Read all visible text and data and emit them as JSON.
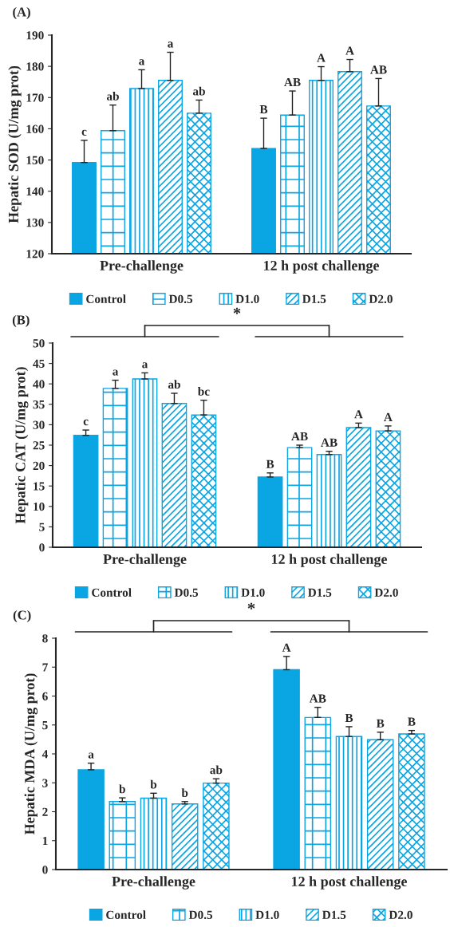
{
  "chart_data": [
    {
      "type": "bar",
      "title": "(A)",
      "ylabel": "Hepatic SOD (U/mg prot)",
      "categories": [
        "Pre-challenge",
        "12 h post challenge"
      ],
      "ylim": [
        120,
        190
      ],
      "yticks": [
        120,
        130,
        140,
        150,
        160,
        170,
        180,
        190
      ],
      "legend": "bottom",
      "series": [
        {
          "name": "Control",
          "color": "#0aa5e3",
          "values": [
            149.2,
            153.7
          ],
          "errors": [
            [
              149.2,
              156.3
            ],
            [
              153.7,
              163.4
            ]
          ],
          "value_labels": [
            "c",
            "B"
          ]
        },
        {
          "name": "D0.5",
          "color": "#0aa5e3",
          "values": [
            159.4,
            164.4
          ],
          "errors": [
            [
              159.4,
              167.6
            ],
            [
              164.4,
              172.1
            ]
          ],
          "value_labels": [
            "ab",
            "AB"
          ]
        },
        {
          "name": "D1.0",
          "color": "#0aa5e3",
          "values": [
            172.9,
            175.5
          ],
          "errors": [
            [
              172.9,
              178.9
            ],
            [
              175.5,
              179.9
            ]
          ],
          "value_labels": [
            "a",
            "A"
          ]
        },
        {
          "name": "D1.5",
          "color": "#0aa5e3",
          "values": [
            175.5,
            178.3
          ],
          "errors": [
            [
              175.5,
              184.5
            ],
            [
              178.3,
              182.2
            ]
          ],
          "value_labels": [
            "a",
            "A"
          ]
        },
        {
          "name": "D2.0",
          "color": "#0aa5e3",
          "values": [
            165.0,
            167.3
          ],
          "errors": [
            [
              165.0,
              169.2
            ],
            [
              167.3,
              176.1
            ]
          ],
          "value_labels": [
            "ab",
            "AB"
          ]
        }
      ]
    },
    {
      "type": "bar",
      "title": "(B)",
      "ylabel": "Hepatic CAT (U/mg prot)",
      "categories": [
        "Pre-challenge",
        "12 h post challenge"
      ],
      "ylim": [
        0,
        50
      ],
      "yticks": [
        0,
        5,
        10,
        15,
        20,
        25,
        30,
        35,
        40,
        45,
        50
      ],
      "legend": "bottom",
      "annotations": [
        "*"
      ],
      "series": [
        {
          "name": "Control",
          "color": "#0aa5e3",
          "values": [
            27.4,
            17.2
          ],
          "errors": [
            [
              27.4,
              28.7
            ],
            [
              17.2,
              18.2
            ]
          ],
          "value_labels": [
            "c",
            "B"
          ]
        },
        {
          "name": "D0.5",
          "color": "#0aa5e3",
          "values": [
            38.9,
            24.4
          ],
          "errors": [
            [
              38.9,
              40.9
            ],
            [
              24.4,
              25.0
            ]
          ],
          "value_labels": [
            "a",
            "AB"
          ]
        },
        {
          "name": "D1.0",
          "color": "#0aa5e3",
          "values": [
            41.2,
            22.7
          ],
          "errors": [
            [
              41.2,
              42.7
            ],
            [
              22.7,
              23.5
            ]
          ],
          "value_labels": [
            "a",
            "AB"
          ]
        },
        {
          "name": "D1.5",
          "color": "#0aa5e3",
          "values": [
            35.2,
            29.3
          ],
          "errors": [
            [
              35.2,
              37.7
            ],
            [
              29.3,
              30.4
            ]
          ],
          "value_labels": [
            "ab",
            "A"
          ]
        },
        {
          "name": "D2.0",
          "color": "#0aa5e3",
          "values": [
            32.4,
            28.5
          ],
          "errors": [
            [
              32.4,
              36.0
            ],
            [
              28.5,
              29.7
            ]
          ],
          "value_labels": [
            "bc",
            "A"
          ]
        }
      ]
    },
    {
      "type": "bar",
      "title": "(C)",
      "ylabel": "Hepatic MDA (U/mg prot)",
      "categories": [
        "Pre-challenge",
        "12 h post challenge"
      ],
      "ylim": [
        0,
        8
      ],
      "yticks": [
        0,
        1,
        2,
        3,
        4,
        5,
        6,
        7,
        8
      ],
      "legend": "bottom",
      "annotations": [
        "*"
      ],
      "series": [
        {
          "name": "Control",
          "color": "#0aa5e3",
          "values": [
            3.45,
            6.91
          ],
          "errors": [
            [
              3.45,
              3.68
            ],
            [
              6.91,
              7.37
            ]
          ],
          "value_labels": [
            "a",
            "A"
          ]
        },
        {
          "name": "D0.5",
          "color": "#0aa5e3",
          "values": [
            2.35,
            5.26
          ],
          "errors": [
            [
              2.35,
              2.48
            ],
            [
              5.26,
              5.61
            ]
          ],
          "value_labels": [
            "b",
            "AB"
          ]
        },
        {
          "name": "D1.0",
          "color": "#0aa5e3",
          "values": [
            2.47,
            4.6
          ],
          "errors": [
            [
              2.47,
              2.64
            ],
            [
              4.6,
              4.94
            ]
          ],
          "value_labels": [
            "b",
            "B"
          ]
        },
        {
          "name": "D1.5",
          "color": "#0aa5e3",
          "values": [
            2.27,
            4.49
          ],
          "errors": [
            [
              2.27,
              2.35
            ],
            [
              4.49,
              4.75
            ]
          ],
          "value_labels": [
            "b",
            "B"
          ]
        },
        {
          "name": "D2.0",
          "color": "#0aa5e3",
          "values": [
            2.99,
            4.69
          ],
          "errors": [
            [
              2.99,
              3.14
            ],
            [
              4.69,
              4.81
            ]
          ],
          "value_labels": [
            "ab",
            "B"
          ]
        }
      ]
    }
  ]
}
